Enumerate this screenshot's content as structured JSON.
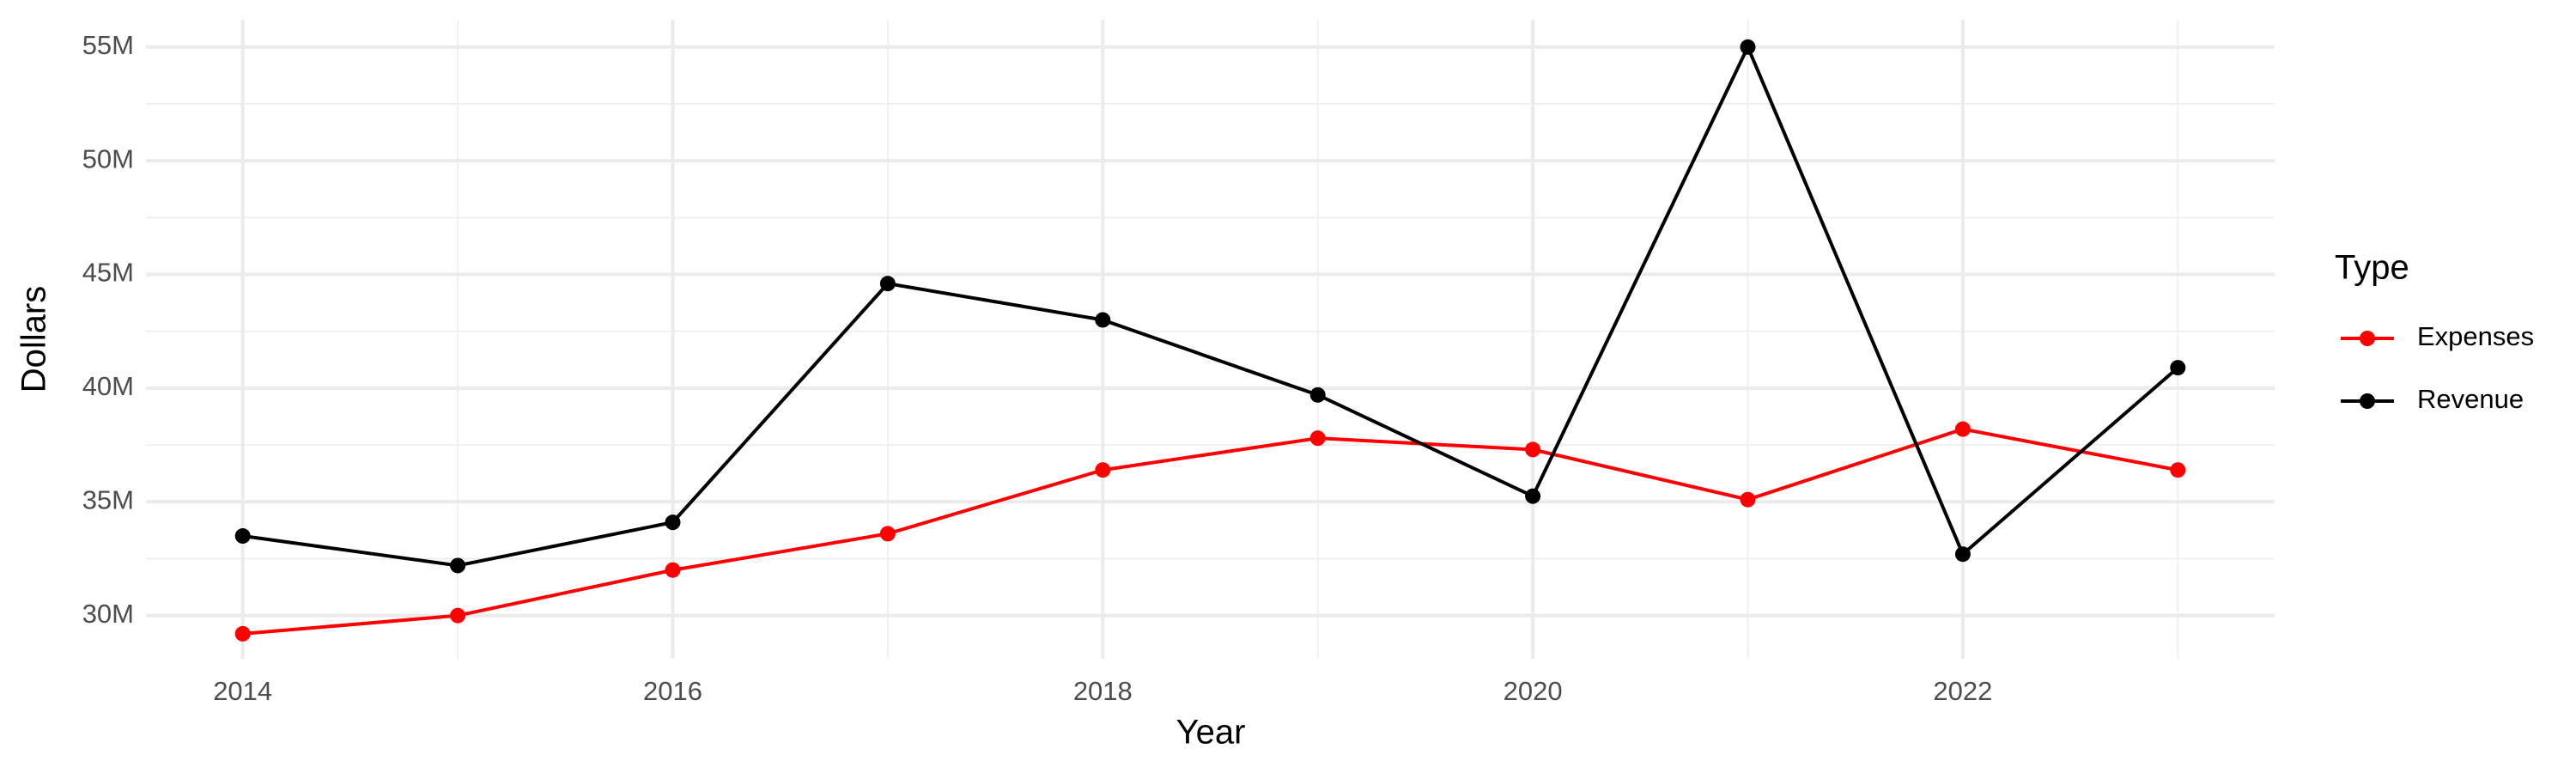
{
  "chart_data": {
    "type": "line",
    "x_label": "Year",
    "y_label": "Dollars",
    "legend_title": "Type",
    "x": [
      2014,
      2015,
      2016,
      2017,
      2018,
      2019,
      2020,
      2021,
      2022,
      2023
    ],
    "series": [
      {
        "name": "Expenses",
        "color": "#ff0000",
        "values": [
          29200000,
          30000000,
          32000000,
          33600000,
          36400000,
          37800000,
          37300000,
          35100000,
          38200000,
          36400000
        ]
      },
      {
        "name": "Revenue",
        "color": "#000000",
        "values": [
          33500000,
          32200000,
          34100000,
          44600000,
          43000000,
          39700000,
          35250000,
          55000000,
          32700000,
          40900000
        ]
      }
    ],
    "xlim": [
      2013.55,
      2023.45
    ],
    "xticks": [
      2014,
      2016,
      2018,
      2020,
      2022
    ],
    "xminorticks": [
      2015,
      2017,
      2019,
      2021,
      2023
    ],
    "ylim": [
      28100000,
      56200000
    ],
    "yticks": [
      {
        "value": 30000000,
        "label": "30M"
      },
      {
        "value": 35000000,
        "label": "35M"
      },
      {
        "value": 40000000,
        "label": "40M"
      },
      {
        "value": 45000000,
        "label": "45M"
      },
      {
        "value": 50000000,
        "label": "50M"
      },
      {
        "value": 55000000,
        "label": "55M"
      }
    ],
    "yminorticks": [
      32500000,
      37500000,
      42500000,
      47500000,
      52500000
    ],
    "grid": true,
    "legend": "right"
  }
}
